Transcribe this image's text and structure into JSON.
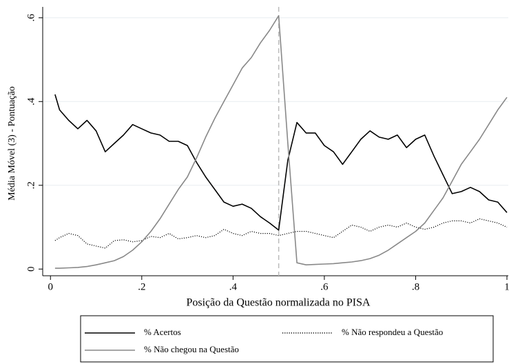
{
  "chart_data": {
    "type": "line",
    "ylabel": "Média Móvel (3) - Pontuação",
    "xlabel": "Posição da Questão normalizada no PISA",
    "x": [
      0.01,
      0.02,
      0.04,
      0.06,
      0.08,
      0.1,
      0.12,
      0.14,
      0.16,
      0.18,
      0.2,
      0.22,
      0.24,
      0.26,
      0.28,
      0.3,
      0.32,
      0.34,
      0.36,
      0.38,
      0.4,
      0.42,
      0.44,
      0.46,
      0.48,
      0.5,
      0.52,
      0.54,
      0.56,
      0.58,
      0.6,
      0.62,
      0.64,
      0.66,
      0.68,
      0.7,
      0.72,
      0.74,
      0.76,
      0.78,
      0.8,
      0.82,
      0.84,
      0.86,
      0.88,
      0.9,
      0.92,
      0.94,
      0.96,
      0.98,
      1.0
    ],
    "series": [
      {
        "name": "% Acertos",
        "color": "#000000",
        "style": "solid",
        "values": [
          0.417,
          0.38,
          0.355,
          0.335,
          0.355,
          0.33,
          0.28,
          0.3,
          0.32,
          0.345,
          0.335,
          0.325,
          0.32,
          0.305,
          0.305,
          0.295,
          0.255,
          0.22,
          0.19,
          0.16,
          0.15,
          0.155,
          0.145,
          0.125,
          0.11,
          0.093,
          0.26,
          0.35,
          0.325,
          0.325,
          0.295,
          0.28,
          0.25,
          0.28,
          0.31,
          0.33,
          0.315,
          0.31,
          0.32,
          0.29,
          0.31,
          0.32,
          0.27,
          0.225,
          0.18,
          0.185,
          0.195,
          0.185,
          0.165,
          0.16,
          0.135
        ]
      },
      {
        "name": "% Não respondeu a Questão",
        "color": "#000000",
        "style": "dotted",
        "values": [
          0.068,
          0.075,
          0.085,
          0.08,
          0.06,
          0.055,
          0.05,
          0.068,
          0.07,
          0.065,
          0.068,
          0.078,
          0.075,
          0.085,
          0.072,
          0.075,
          0.08,
          0.075,
          0.08,
          0.095,
          0.085,
          0.08,
          0.09,
          0.085,
          0.085,
          0.08,
          0.085,
          0.09,
          0.09,
          0.085,
          0.08,
          0.075,
          0.09,
          0.105,
          0.1,
          0.09,
          0.1,
          0.105,
          0.1,
          0.11,
          0.1,
          0.095,
          0.1,
          0.11,
          0.115,
          0.115,
          0.11,
          0.12,
          0.115,
          0.11,
          0.1
        ]
      },
      {
        "name": "% Não chegou na Questão",
        "color": "#888888",
        "style": "solid",
        "values": [
          0.002,
          0.002,
          0.003,
          0.004,
          0.006,
          0.01,
          0.015,
          0.02,
          0.03,
          0.045,
          0.065,
          0.09,
          0.12,
          0.155,
          0.19,
          0.22,
          0.265,
          0.315,
          0.36,
          0.4,
          0.44,
          0.48,
          0.505,
          0.54,
          0.57,
          0.605,
          0.3,
          0.015,
          0.01,
          0.011,
          0.012,
          0.013,
          0.015,
          0.017,
          0.02,
          0.025,
          0.033,
          0.045,
          0.06,
          0.075,
          0.09,
          0.11,
          0.14,
          0.17,
          0.21,
          0.25,
          0.28,
          0.31,
          0.345,
          0.38,
          0.41
        ]
      }
    ],
    "xline": 0.5,
    "xlim": [
      -0.017,
      1.0
    ],
    "ylim": [
      -0.016,
      0.626
    ],
    "xticks": [
      0,
      {
        "value": 0.2,
        "label": ".2"
      },
      {
        "value": 0.4,
        "label": ".4"
      },
      {
        "value": 0.6,
        "label": ".6"
      },
      {
        "value": 0.8,
        "label": ".8"
      },
      1
    ],
    "yticks": [
      0,
      {
        "value": 0.2,
        "label": ".2"
      },
      {
        "value": 0.4,
        "label": ".4"
      },
      {
        "value": 0.6,
        "label": ".6"
      }
    ],
    "grid": true
  }
}
